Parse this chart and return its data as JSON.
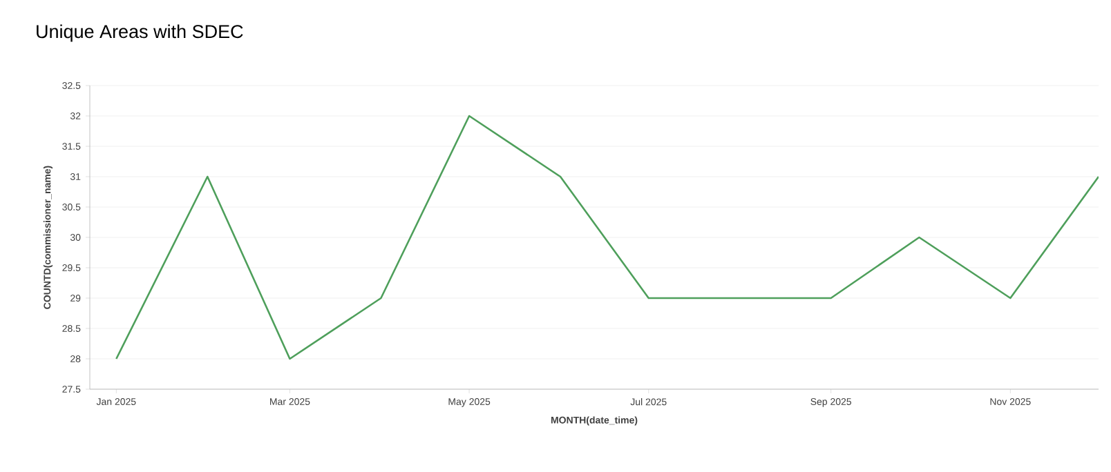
{
  "chart_data": {
    "type": "line",
    "title": "Unique Areas with SDEC",
    "xlabel": "MONTH(date_time)",
    "ylabel": "COUNTD(commissioner_name)",
    "x": [
      "2025-01",
      "2025-02",
      "2025-03",
      "2025-04",
      "2025-05",
      "2025-06",
      "2025-07",
      "2025-08",
      "2025-09",
      "2025-10",
      "2025-11",
      "2025-12"
    ],
    "series": [
      {
        "color": "#4e9f5b",
        "values": [
          28,
          31,
          28,
          29,
          32,
          31,
          29,
          29,
          29,
          30,
          29,
          31
        ]
      }
    ],
    "xlim": [
      "2024-12-23",
      "2025-12-01"
    ],
    "xticks": [
      {
        "value": "2025-01",
        "label": "Jan 2025"
      },
      {
        "value": "2025-03",
        "label": "Mar 2025"
      },
      {
        "value": "2025-05",
        "label": "May 2025"
      },
      {
        "value": "2025-07",
        "label": "Jul 2025"
      },
      {
        "value": "2025-09",
        "label": "Sep 2025"
      },
      {
        "value": "2025-11",
        "label": "Nov 2025"
      }
    ],
    "ylim": [
      27.5,
      32.5
    ],
    "yticks": [
      27.5,
      28,
      28.5,
      29,
      29.5,
      30,
      30.5,
      31,
      31.5,
      32,
      32.5
    ],
    "grid": "y",
    "marker": "none",
    "line_style": "solid"
  }
}
